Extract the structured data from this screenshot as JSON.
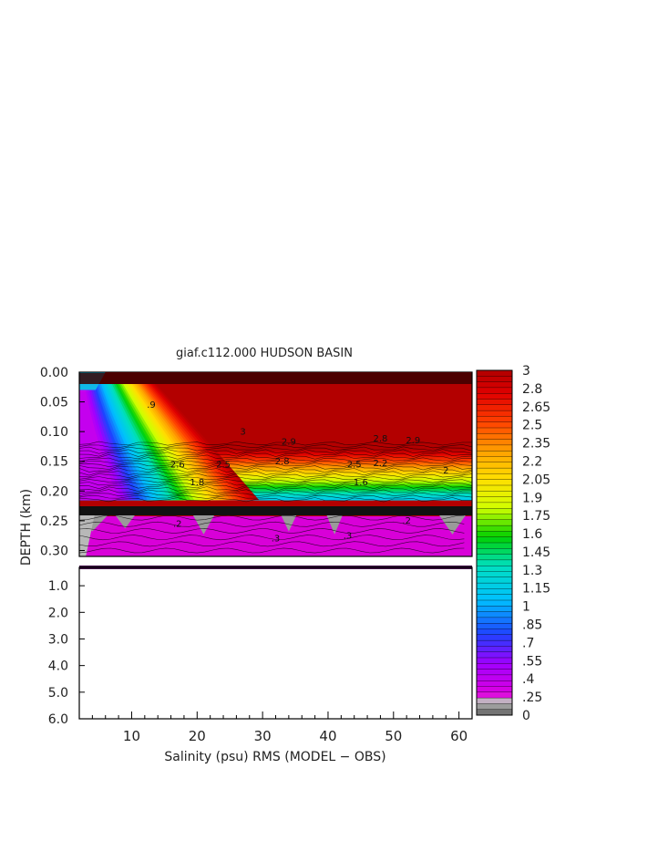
{
  "chart_data": {
    "type": "heatmap",
    "title": "giaf.c112.000 HUDSON BASIN",
    "xlabel": "Salinity (psu) RMS (MODEL − OBS)",
    "ylabel": "DEPTH (km)",
    "x_ticks": [
      "10",
      "20",
      "30",
      "40",
      "50",
      "60"
    ],
    "xlim": [
      2,
      62
    ],
    "upper_panel": {
      "ylim": [
        0.0,
        0.31
      ],
      "y_ticks": [
        "0.00",
        "0.05",
        "0.10",
        "0.15",
        "0.20",
        "0.25",
        "0.30"
      ]
    },
    "lower_panel": {
      "ylim": [
        0.31,
        6.0
      ],
      "y_ticks": [
        "1.0",
        "2.0",
        "3.0",
        "4.0",
        "5.0",
        "6.0"
      ]
    },
    "colorbar": {
      "labels": [
        "3",
        "2.8",
        "2.65",
        "2.5",
        "2.35",
        "2.2",
        "2.05",
        "1.9",
        "1.75",
        "1.6",
        "1.45",
        "1.3",
        "1.15",
        "1",
        ".85",
        ".7",
        ".55",
        ".4",
        ".25",
        "0"
      ],
      "min": 0,
      "max": 3
    },
    "field_summary": {
      "surface_layer_0_to_0.02_km": "high RMS (~3)",
      "core_0.02_to_0.14_km_x_gt_15": "RMS ~3 (dark red)",
      "gradient_0.14_to_0.22_km": "RMS decreasing from ~2.8 to ~1.2",
      "x_lt_8_column": "low RMS (0.3-1.0), blue-purple",
      "band_0.22_to_0.30_km": "RMS ~0.1-0.3 (magenta / gray)",
      "below_0.31_km": "no data (white)"
    },
    "contour_labels": [
      "3",
      "2.9",
      "2.8",
      "2.6",
      "2.5",
      "2.2",
      "2",
      "1.8",
      "1.6",
      ".9",
      ".2",
      ".3"
    ]
  }
}
